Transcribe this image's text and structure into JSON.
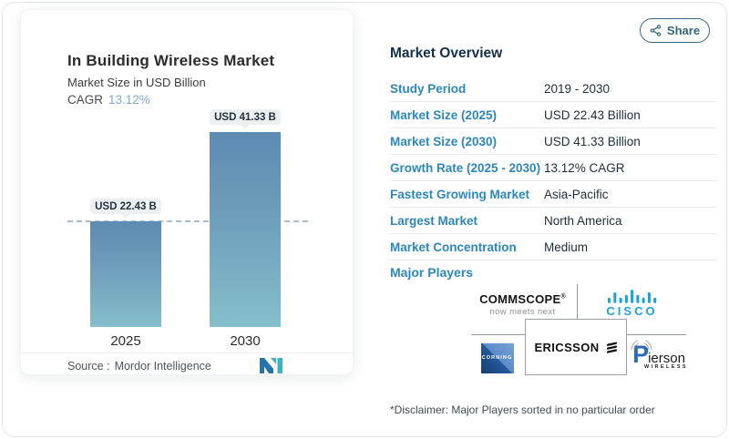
{
  "share": {
    "label": "Share"
  },
  "chart": {
    "title": "In Building Wireless Market",
    "subtitle": "Market Size in USD Billion",
    "cagr_label": "CAGR",
    "cagr_value": "13.12%",
    "source_label": "Source :",
    "source_value": "Mordor Intelligence"
  },
  "chart_data": {
    "type": "bar",
    "categories": [
      "2025",
      "2030"
    ],
    "values": [
      22.43,
      41.33
    ],
    "bar_labels": [
      "USD 22.43 B",
      "USD 41.33 B"
    ],
    "title": "In Building Wireless Market",
    "ylabel": "Market Size in USD Billion",
    "cagr": "13.12%",
    "reference_line": 22.43,
    "ylim": [
      0,
      45
    ],
    "grid": false,
    "colors": {
      "bar_top": "#5d8bb2",
      "bar_bottom": "#85bfca",
      "dash_line": "#a4bdd0",
      "badge_bg": "#edf0f0"
    }
  },
  "overview": {
    "heading": "Market Overview",
    "rows": [
      {
        "label": "Study Period",
        "value": "2019 - 2030"
      },
      {
        "label": "Market Size (2025)",
        "value": "USD 22.43 Billion"
      },
      {
        "label": "Market Size (2030)",
        "value": "USD 41.33 Billion"
      },
      {
        "label": "Growth Rate (2025 - 2030)",
        "value": "13.12% CAGR"
      },
      {
        "label": "Fastest Growing Market",
        "value": "Asia-Pacific"
      },
      {
        "label": "Largest Market",
        "value": "North America"
      },
      {
        "label": "Market Concentration",
        "value": "Medium"
      }
    ],
    "major_players_label": "Major Players",
    "players": {
      "commscope": {
        "name": "COMMSCOPE",
        "reg": "®",
        "tagline": "now meets next"
      },
      "cisco": {
        "name": "cisco"
      },
      "corning": {
        "name": "CORNING"
      },
      "ericsson": {
        "name": "ERICSSON"
      },
      "pierson": {
        "initial": "P",
        "rest": "ierson",
        "sub": "WIRELESS"
      }
    }
  },
  "disclaimer": "*Disclaimer: Major Players sorted in no particular order",
  "colors": {
    "label_blue": "#2c87ba",
    "value_dark": "#1c2e3c",
    "share_teal": "#33657e",
    "cisco_blue": "#1ba2d8",
    "mordor_blue": "#2472ae",
    "mordor_teal": "#3fb0c0"
  }
}
